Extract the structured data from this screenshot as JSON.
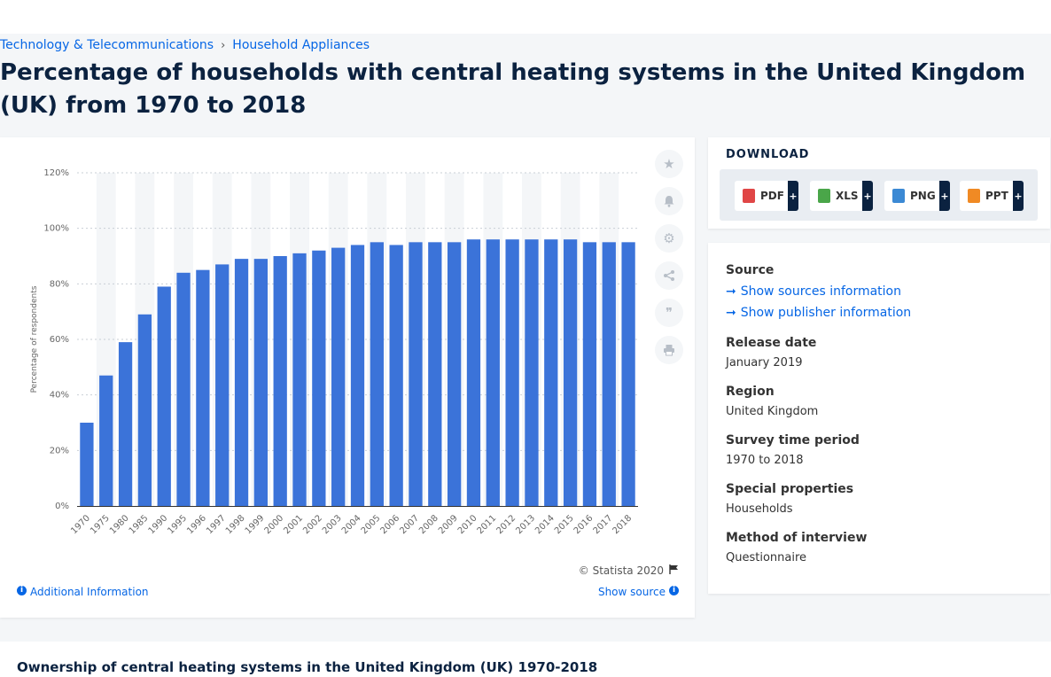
{
  "breadcrumb": {
    "category": "Technology & Telecommunications",
    "separator": "›",
    "subcategory": "Household Appliances"
  },
  "page_title": "Percentage of households with central heating systems in the United Kingdom (UK) from 1970 to 2018",
  "chart_footer": {
    "credit": "© Statista 2020",
    "additional_info": "Additional Information",
    "show_source": "Show source"
  },
  "toolbar_icons": [
    "star-icon",
    "bell-icon",
    "gear-icon",
    "share-icon",
    "quote-icon",
    "print-icon"
  ],
  "download": {
    "heading": "DOWNLOAD",
    "buttons": [
      {
        "label": "PDF",
        "plus": "+",
        "icon": "pdf-file-icon",
        "color": "#e04646"
      },
      {
        "label": "XLS",
        "plus": "+",
        "icon": "xls-file-icon",
        "color": "#4aa649"
      },
      {
        "label": "PNG",
        "plus": "+",
        "icon": "png-file-icon",
        "color": "#3b89d4"
      },
      {
        "label": "PPT",
        "plus": "+",
        "icon": "ppt-file-icon",
        "color": "#f08a24"
      }
    ]
  },
  "meta": {
    "source_label": "Source",
    "show_sources": "Show sources information",
    "show_publisher": "Show publisher information",
    "release_label": "Release date",
    "release_value": "January 2019",
    "region_label": "Region",
    "region_value": "United Kingdom",
    "survey_label": "Survey time period",
    "survey_value": "1970 to 2018",
    "special_label": "Special properties",
    "special_value": "Households",
    "method_label": "Method of interview",
    "method_value": "Questionnaire"
  },
  "related": {
    "title": "Ownership of central heating systems in the United Kingdom (UK) 1970-2018"
  },
  "colors": {
    "bar": "#3b73d9",
    "accent": "#0666e5",
    "navy": "#0b2240"
  },
  "chart_data": {
    "type": "bar",
    "categories": [
      "1970",
      "1975",
      "1980",
      "1985",
      "1990",
      "1995",
      "1996",
      "1997",
      "1998",
      "1999",
      "2000",
      "2001",
      "2002",
      "2003",
      "2004",
      "2005",
      "2006",
      "2007",
      "2008",
      "2009",
      "2010",
      "2011",
      "2012",
      "2013",
      "2014",
      "2015",
      "2016",
      "2017",
      "2018"
    ],
    "values": [
      30,
      47,
      59,
      69,
      79,
      84,
      85,
      87,
      89,
      89,
      90,
      91,
      92,
      93,
      94,
      95,
      94,
      95,
      95,
      95,
      96,
      96,
      96,
      96,
      96,
      96,
      95,
      95,
      95
    ],
    "ylabel": "Percentage of respondents",
    "xlabel": "",
    "ylim": [
      0,
      120
    ],
    "yticks": [
      "0%",
      "20%",
      "40%",
      "60%",
      "80%",
      "100%",
      "120%"
    ],
    "grid": true
  }
}
